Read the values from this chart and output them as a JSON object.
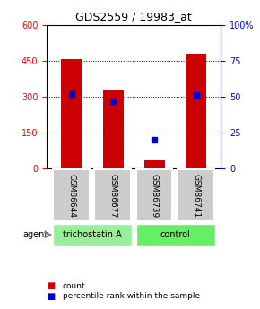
{
  "title": "GDS2559 / 19983_at",
  "samples": [
    "GSM86644",
    "GSM86677",
    "GSM86739",
    "GSM86741"
  ],
  "bar_values": [
    455,
    325,
    35,
    480
  ],
  "percentile_values": [
    52,
    47,
    20,
    51
  ],
  "bar_color": "#cc0000",
  "percentile_color": "#0000cc",
  "ylim_left": [
    0,
    600
  ],
  "ylim_right": [
    0,
    100
  ],
  "yticks_left": [
    0,
    150,
    300,
    450,
    600
  ],
  "yticks_right": [
    0,
    25,
    50,
    75,
    100
  ],
  "groups": [
    {
      "label": "trichostatin A",
      "samples": [
        "GSM86644",
        "GSM86677"
      ],
      "color": "#99ee99"
    },
    {
      "label": "control",
      "samples": [
        "GSM86739",
        "GSM86741"
      ],
      "color": "#66ee66"
    }
  ],
  "legend_count_color": "#cc0000",
  "legend_pct_color": "#0000cc",
  "background_color": "#ffffff",
  "plot_bg": "#ffffff",
  "agent_label": "agent",
  "bar_width": 0.4
}
